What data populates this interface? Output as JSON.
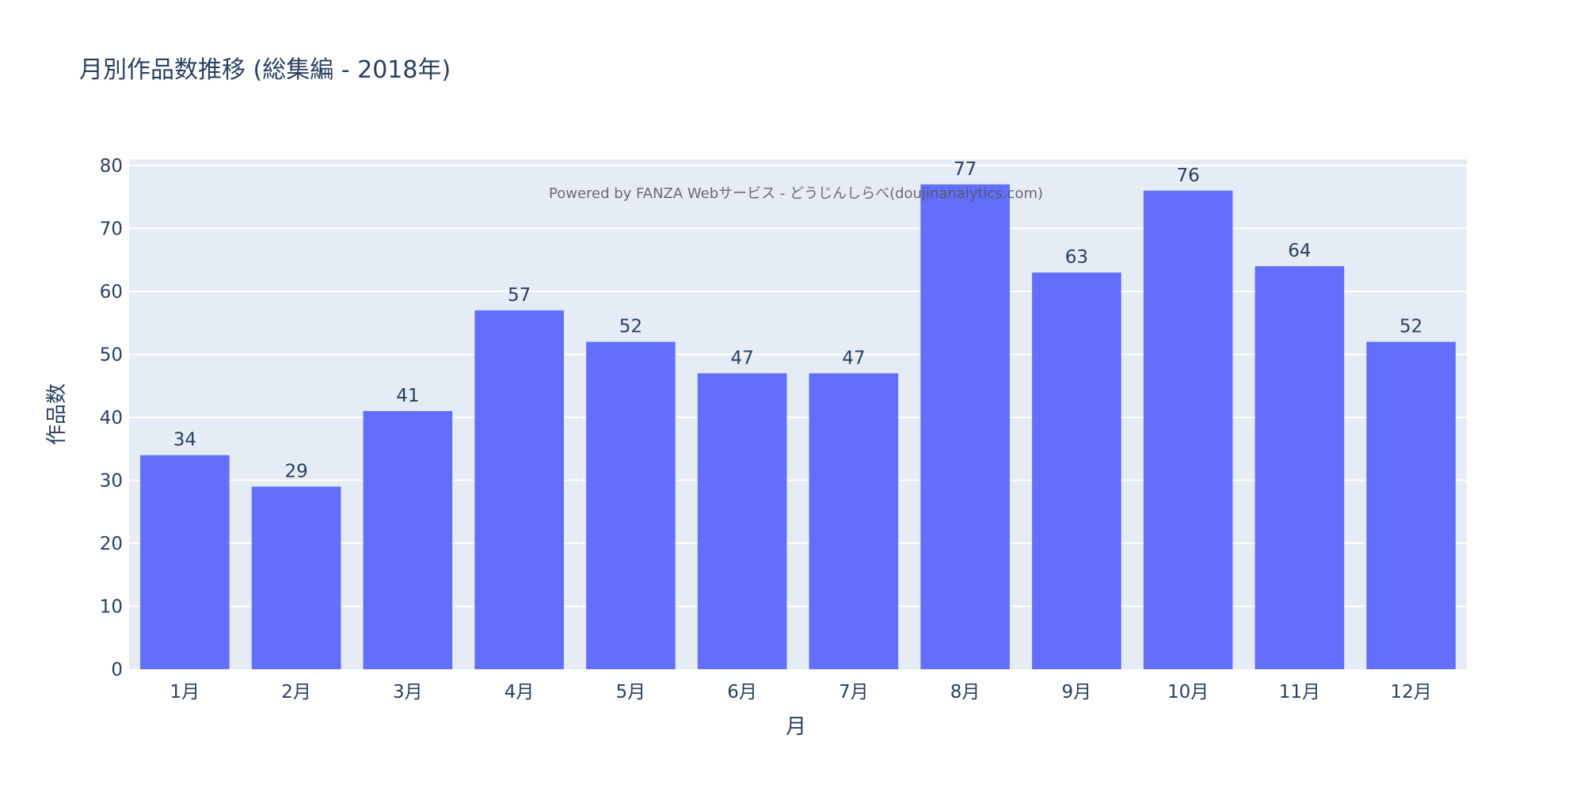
{
  "chart_data": {
    "type": "bar",
    "title": "月別作品数推移 (総集編 - 2018年)",
    "xlabel": "月",
    "ylabel": "作品数",
    "categories": [
      "1月",
      "2月",
      "3月",
      "4月",
      "5月",
      "6月",
      "7月",
      "8月",
      "9月",
      "10月",
      "11月",
      "12月"
    ],
    "values": [
      34,
      29,
      41,
      57,
      52,
      47,
      47,
      77,
      63,
      76,
      64,
      52
    ],
    "ylim": [
      0,
      81
    ],
    "yticks": [
      0,
      10,
      20,
      30,
      40,
      50,
      60,
      70,
      80
    ],
    "grid": true,
    "legend": "none",
    "annotation": "Powered by FANZA Webサービス - どうじんしらべ(doujinanalytics.com)",
    "colors": {
      "bar": "#636efa",
      "plot_bg": "#e5ecf6",
      "grid": "#ffffff",
      "text": "#2a3f5f"
    }
  }
}
